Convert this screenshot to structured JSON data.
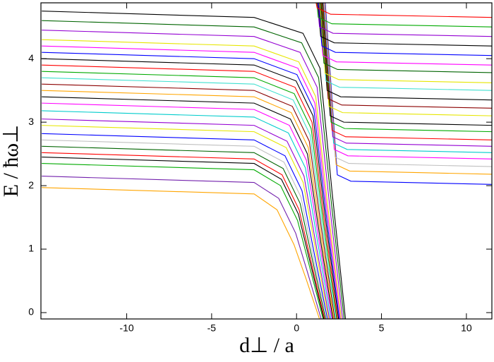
{
  "chart_data": {
    "type": "line",
    "x_label": "d⊥ / a",
    "y_label": "E / ħω⊥",
    "xlim": [
      -15.05,
      11.5
    ],
    "ylim": [
      -0.1,
      4.88
    ],
    "xticks": [
      -10,
      -5,
      0,
      5,
      10
    ],
    "yticks": [
      0,
      1,
      2,
      3,
      4
    ],
    "grid": false,
    "series": [
      {
        "color": "#ffa500",
        "x": [
          -15,
          -2.5,
          -1.15,
          -0.15,
          0.55,
          1.35
        ],
        "values": [
          1.97,
          1.87,
          1.62,
          1.07,
          0.54,
          -0.1
        ]
      },
      {
        "color": "#7220ac",
        "x": [
          -15,
          -2.5,
          -1.05,
          -0.05,
          0.65,
          1.45
        ],
        "values": [
          2.15,
          2.05,
          1.8,
          1.25,
          0.63,
          -0.1
        ]
      },
      {
        "color": "#00aa00",
        "x": [
          -15,
          -2.5,
          -0.94,
          0.06,
          0.76,
          1.56
        ],
        "values": [
          2.35,
          2.25,
          2.0,
          1.45,
          0.73,
          -0.1
        ]
      },
      {
        "color": "#000000",
        "x": [
          -15,
          -2.5,
          -0.89,
          0.11,
          0.81,
          1.61
        ],
        "values": [
          2.45,
          2.35,
          2.1,
          1.55,
          0.78,
          -0.1
        ]
      },
      {
        "color": "#ff0000",
        "x": [
          -15,
          -2.5,
          -0.85,
          0.15,
          0.85,
          1.65
        ],
        "values": [
          2.52,
          2.42,
          2.17,
          1.62,
          0.81,
          -0.1
        ]
      },
      {
        "color": "#006400",
        "x": [
          -15,
          -2.5,
          -0.79,
          0.21,
          0.91,
          1.71
        ],
        "values": [
          2.62,
          2.52,
          2.27,
          1.72,
          0.86,
          -0.1
        ]
      },
      {
        "color": "#c0c0c0",
        "x": [
          -15,
          -2.5,
          -0.74,
          0.26,
          0.96,
          1.76
        ],
        "values": [
          2.72,
          2.62,
          2.37,
          1.82,
          0.91,
          -0.1
        ]
      },
      {
        "color": "#0000ff",
        "x": [
          -15,
          -2.5,
          -0.68,
          0.32,
          1.02,
          1.82
        ],
        "values": [
          2.82,
          2.72,
          2.47,
          1.92,
          0.96,
          -0.1
        ]
      },
      {
        "color": "#e6e600",
        "x": [
          -15,
          -2.5,
          -0.61,
          0.39,
          1.09,
          1.89
        ],
        "values": [
          2.95,
          2.85,
          2.6,
          2.05,
          1.03,
          -0.1
        ]
      },
      {
        "color": "#9400d3",
        "x": [
          -15,
          -2.5,
          -0.56,
          0.44,
          1.14,
          1.94
        ],
        "values": [
          3.05,
          2.95,
          2.7,
          2.15,
          1.08,
          -0.1
        ]
      },
      {
        "color": "#00cccc",
        "x": [
          -15,
          -2.5,
          -0.48,
          0.52,
          1.22,
          2.02
        ],
        "values": [
          3.18,
          3.08,
          2.83,
          2.28,
          1.14,
          -0.1
        ]
      },
      {
        "color": "#ff00ff",
        "x": [
          -15,
          -2.5,
          -0.42,
          0.58,
          1.28,
          2.08
        ],
        "values": [
          3.3,
          3.2,
          2.95,
          2.4,
          1.2,
          -0.1
        ]
      },
      {
        "color": "#000000",
        "x": [
          -15,
          -2.5,
          -0.36,
          0.64,
          1.34,
          2.14
        ],
        "values": [
          3.4,
          3.3,
          3.05,
          2.5,
          1.25,
          -0.1
        ]
      },
      {
        "color": "#ffa500",
        "x": [
          -15,
          -2.5,
          -0.31,
          0.69,
          1.39,
          2.19
        ],
        "values": [
          3.5,
          3.4,
          3.15,
          2.6,
          1.3,
          -0.1
        ]
      },
      {
        "color": "#8b0000",
        "x": [
          -15,
          -2.5,
          -0.25,
          0.75,
          1.45,
          2.25
        ],
        "values": [
          3.6,
          3.5,
          3.25,
          2.7,
          1.35,
          -0.1
        ]
      },
      {
        "color": "#40e0d0",
        "x": [
          -15,
          -2.5,
          -0.2,
          0.8,
          1.5,
          2.3
        ],
        "values": [
          3.7,
          3.6,
          3.35,
          2.8,
          1.4,
          -0.1
        ]
      },
      {
        "color": "#00aa00",
        "x": [
          -15,
          -2.5,
          -0.14,
          0.86,
          1.56,
          2.36
        ],
        "values": [
          3.8,
          3.7,
          3.45,
          2.9,
          1.45,
          -0.1
        ]
      },
      {
        "color": "#ff0000",
        "x": [
          -15,
          -2.5,
          -0.09,
          0.91,
          1.61,
          2.41
        ],
        "values": [
          3.9,
          3.8,
          3.55,
          3.0,
          1.5,
          -0.1
        ]
      },
      {
        "color": "#000000",
        "x": [
          -15,
          -2.5,
          -0.03,
          0.97,
          1.67,
          2.47
        ],
        "values": [
          4.0,
          3.9,
          3.65,
          3.1,
          1.55,
          -0.1
        ]
      },
      {
        "color": "#0000ff",
        "x": [
          -15,
          -2.5,
          0.02,
          1.02,
          1.72,
          2.52
        ],
        "values": [
          4.1,
          4.0,
          3.75,
          3.2,
          1.6,
          -0.1
        ]
      },
      {
        "color": "#ff00ff",
        "x": [
          -15,
          -2.5,
          0.08,
          1.08,
          1.78,
          2.58
        ],
        "values": [
          4.2,
          4.1,
          3.85,
          3.3,
          1.65,
          -0.1
        ]
      },
      {
        "color": "#e6e600",
        "x": [
          -15,
          -2.5,
          0.13,
          1.13,
          1.83,
          2.63
        ],
        "values": [
          4.3,
          4.2,
          3.95,
          3.4,
          1.7,
          -0.1
        ]
      },
      {
        "color": "#9400d3",
        "x": [
          -15,
          -2.5,
          0.21,
          1.21,
          1.91,
          2.71
        ],
        "values": [
          4.45,
          4.35,
          4.1,
          3.55,
          1.78,
          -0.1
        ]
      },
      {
        "color": "#006400",
        "x": [
          -15,
          -2.5,
          0.3,
          1.3,
          2.0,
          2.8
        ],
        "values": [
          4.6,
          4.5,
          4.25,
          3.7,
          1.85,
          -0.1
        ]
      },
      {
        "color": "#000000",
        "x": [
          -15,
          -2.5,
          0.38,
          1.38,
          2.08,
          2.88
        ],
        "values": [
          4.75,
          4.65,
          4.4,
          3.85,
          1.93,
          -0.1
        ]
      },
      {
        "color": "#0000ff",
        "x": [
          1.69,
          2.4,
          3.2,
          11.5
        ],
        "values": [
          4.88,
          2.17,
          2.07,
          2.02
        ]
      },
      {
        "color": "#ffa500",
        "x": [
          1.66,
          2.33,
          3.13,
          11.5
        ],
        "values": [
          4.88,
          2.33,
          2.23,
          2.18
        ]
      },
      {
        "color": "#c0c0c0",
        "x": [
          1.63,
          2.27,
          3.07,
          11.5
        ],
        "values": [
          4.88,
          2.45,
          2.35,
          2.3
        ]
      },
      {
        "color": "#ff00ff",
        "x": [
          1.6,
          2.22,
          3.02,
          11.5
        ],
        "values": [
          4.88,
          2.57,
          2.47,
          2.42
        ]
      },
      {
        "color": "#00cccc",
        "x": [
          1.59,
          2.18,
          2.98,
          11.5
        ],
        "values": [
          4.88,
          2.67,
          2.57,
          2.52
        ]
      },
      {
        "color": "#9400d3",
        "x": [
          1.56,
          2.13,
          2.93,
          11.5
        ],
        "values": [
          4.88,
          2.77,
          2.67,
          2.62
        ]
      },
      {
        "color": "#ff0000",
        "x": [
          1.55,
          2.09,
          2.89,
          11.5
        ],
        "values": [
          4.88,
          2.87,
          2.77,
          2.72
        ]
      },
      {
        "color": "#00aa00",
        "x": [
          1.52,
          2.03,
          2.83,
          11.5
        ],
        "values": [
          4.88,
          3.0,
          2.9,
          2.85
        ]
      },
      {
        "color": "#000000",
        "x": [
          1.5,
          1.98,
          2.78,
          11.5
        ],
        "values": [
          4.88,
          3.1,
          3.0,
          2.95
        ]
      },
      {
        "color": "#e6e600",
        "x": [
          1.46,
          1.91,
          2.71,
          11.5
        ],
        "values": [
          4.88,
          3.25,
          3.15,
          3.1
        ]
      },
      {
        "color": "#8b0000",
        "x": [
          1.44,
          1.86,
          2.66,
          11.5
        ],
        "values": [
          4.88,
          3.37,
          3.27,
          3.22
        ]
      },
      {
        "color": "#000000",
        "x": [
          1.42,
          1.8,
          2.6,
          11.5
        ],
        "values": [
          4.88,
          3.5,
          3.4,
          3.35
        ]
      },
      {
        "color": "#40e0d0",
        "x": [
          1.38,
          1.73,
          2.53,
          11.5
        ],
        "values": [
          4.88,
          3.65,
          3.55,
          3.5
        ]
      },
      {
        "color": "#e6e600",
        "x": [
          1.37,
          1.68,
          2.48,
          11.5
        ],
        "values": [
          4.88,
          3.77,
          3.67,
          3.62
        ]
      },
      {
        "color": "#006400",
        "x": [
          1.34,
          1.61,
          2.41,
          11.5
        ],
        "values": [
          4.88,
          3.93,
          3.83,
          3.78
        ]
      },
      {
        "color": "#ff00ff",
        "x": [
          1.3,
          1.55,
          2.35,
          11.5
        ],
        "values": [
          4.88,
          4.05,
          3.95,
          3.9
        ]
      },
      {
        "color": "#0000ff",
        "x": [
          1.28,
          1.49,
          2.29,
          11.5
        ],
        "values": [
          4.88,
          4.2,
          4.1,
          4.05
        ]
      },
      {
        "color": "#000000",
        "x": [
          1.25,
          1.42,
          2.22,
          11.5
        ],
        "values": [
          4.88,
          4.35,
          4.25,
          4.2
        ]
      },
      {
        "color": "#9400d3",
        "x": [
          1.22,
          1.35,
          2.15,
          11.5
        ],
        "values": [
          4.88,
          4.5,
          4.4,
          4.35
        ]
      },
      {
        "color": "#00aa00",
        "x": [
          1.19,
          1.28,
          2.08,
          11.5
        ],
        "values": [
          4.88,
          4.65,
          4.55,
          4.5
        ]
      },
      {
        "color": "#ff0000",
        "x": [
          1.15,
          1.21,
          2.01,
          11.5
        ],
        "values": [
          4.88,
          4.8,
          4.7,
          4.65
        ]
      }
    ]
  }
}
